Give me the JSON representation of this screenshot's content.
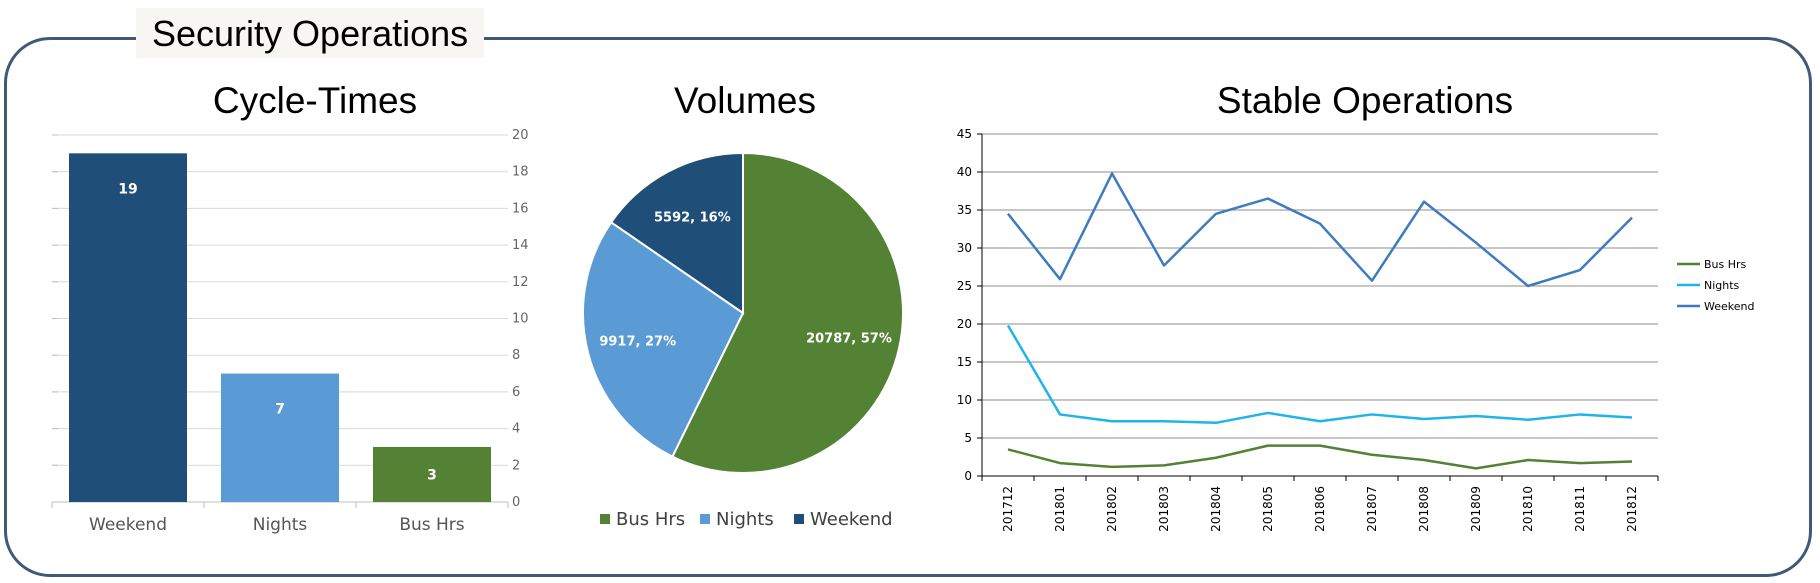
{
  "header": {
    "title": "Security Operations"
  },
  "colors": {
    "frame": "#3f5a78",
    "weekend": "#1f4e79",
    "nights": "#5b9bd5",
    "bus_hrs": "#548235",
    "line_bus": "#548235",
    "line_nights": "#1fb4ea",
    "line_weekend": "#3e7cbf"
  },
  "chart_data": [
    {
      "type": "bar",
      "title": "Cycle-Times",
      "categories": [
        "Weekend",
        "Nights",
        "Bus Hrs"
      ],
      "values": [
        19,
        7,
        3
      ],
      "data_labels": [
        "19",
        "7",
        "3"
      ],
      "ylim": [
        0,
        20
      ],
      "yticks": [
        "0",
        "2",
        "4",
        "6",
        "8",
        "10",
        "12",
        "14",
        "16",
        "18",
        "20"
      ],
      "y_axis_side": "right",
      "grid": true
    },
    {
      "type": "pie",
      "title": "Volumes",
      "series": [
        {
          "name": "Bus Hrs",
          "value": 20787,
          "label": "20787, 57%"
        },
        {
          "name": "Nights",
          "value": 9917,
          "label": "9917, 27%"
        },
        {
          "name": "Weekend",
          "value": 5592,
          "label": "5592, 16%"
        }
      ],
      "legend": [
        "Bus Hrs",
        "Nights",
        "Weekend"
      ],
      "legend_position": "bottom"
    },
    {
      "type": "line",
      "title": "Stable Operations",
      "x": [
        "201712",
        "201801",
        "201802",
        "201803",
        "201804",
        "201805",
        "201806",
        "201807",
        "201808",
        "201809",
        "201810",
        "201811",
        "201812"
      ],
      "ylim": [
        0,
        45
      ],
      "yticks": [
        "0",
        "5",
        "10",
        "15",
        "20",
        "25",
        "30",
        "35",
        "40",
        "45"
      ],
      "grid": true,
      "legend_position": "right",
      "series": [
        {
          "name": "Bus Hrs",
          "values": [
            3.5,
            1.7,
            1.2,
            1.4,
            2.4,
            4.0,
            4.0,
            2.8,
            2.1,
            1.0,
            2.1,
            1.7,
            1.9
          ]
        },
        {
          "name": "Nights",
          "values": [
            19.8,
            8.1,
            7.2,
            7.2,
            7.0,
            8.3,
            7.2,
            8.1,
            7.5,
            7.9,
            7.4,
            8.1,
            7.7
          ]
        },
        {
          "name": "Weekend",
          "values": [
            34.5,
            25.9,
            39.8,
            27.7,
            34.5,
            36.5,
            33.2,
            25.7,
            36.1,
            30.7,
            25.0,
            27.1,
            34.0
          ]
        }
      ]
    }
  ]
}
